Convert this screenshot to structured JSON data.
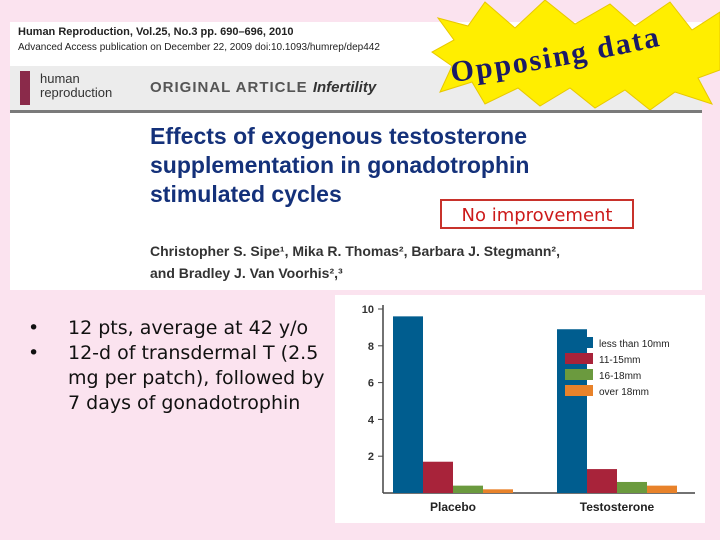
{
  "paper": {
    "journal_line": "Human Reproduction, Vol.25, No.3 pp. 690–696, 2010",
    "advance_access": "Advanced Access publication on December 22, 2009   doi:10.1093/humrep/dep442",
    "journal_logo_line1": "human",
    "journal_logo_line2": "reproduction",
    "article_type": "ORIGINAL ARTICLE",
    "article_subtype": "Infertility",
    "title_line1": "Effects of exogenous testosterone",
    "title_line2": "supplementation in gonadotrophin",
    "title_line3": "stimulated cycles",
    "authors_line1": "Christopher S. Sipe¹, Mika R. Thomas², Barbara J. Stegmann²,",
    "authors_line2": "and Bradley J. Van Voorhis²,³"
  },
  "callouts": {
    "opposing": "Opposing data",
    "no_improvement": "No improvement"
  },
  "bullets": [
    "12 pts, average at 42 y/o",
    "12-d of transdermal T (2.5 mg per patch), followed by 7 days of gonadotrophin"
  ],
  "colors": {
    "title": "#14317a",
    "burst_fill": "#ffee00",
    "opposing_text": "#1a1a66",
    "no_improvement": "#cc1a1a",
    "background": "#fbe3ef"
  },
  "chart_data": {
    "type": "bar",
    "categories": [
      "Placebo",
      "Testosterone"
    ],
    "series": [
      {
        "name": "less than 10mm",
        "color": "#005d8f",
        "values": [
          9.6,
          8.9
        ]
      },
      {
        "name": "11-15mm",
        "color": "#a8233a",
        "values": [
          1.7,
          1.3
        ]
      },
      {
        "name": "16-18mm",
        "color": "#6b9a3e",
        "values": [
          0.4,
          0.6
        ]
      },
      {
        "name": "over 18mm",
        "color": "#e8822a",
        "values": [
          0.2,
          0.4
        ]
      }
    ],
    "yticks": [
      "2",
      "4",
      "6",
      "8",
      "10"
    ],
    "ylim": [
      0,
      10
    ],
    "legend": "top-right",
    "grid": false,
    "title": "",
    "xlabel": "",
    "ylabel": ""
  }
}
